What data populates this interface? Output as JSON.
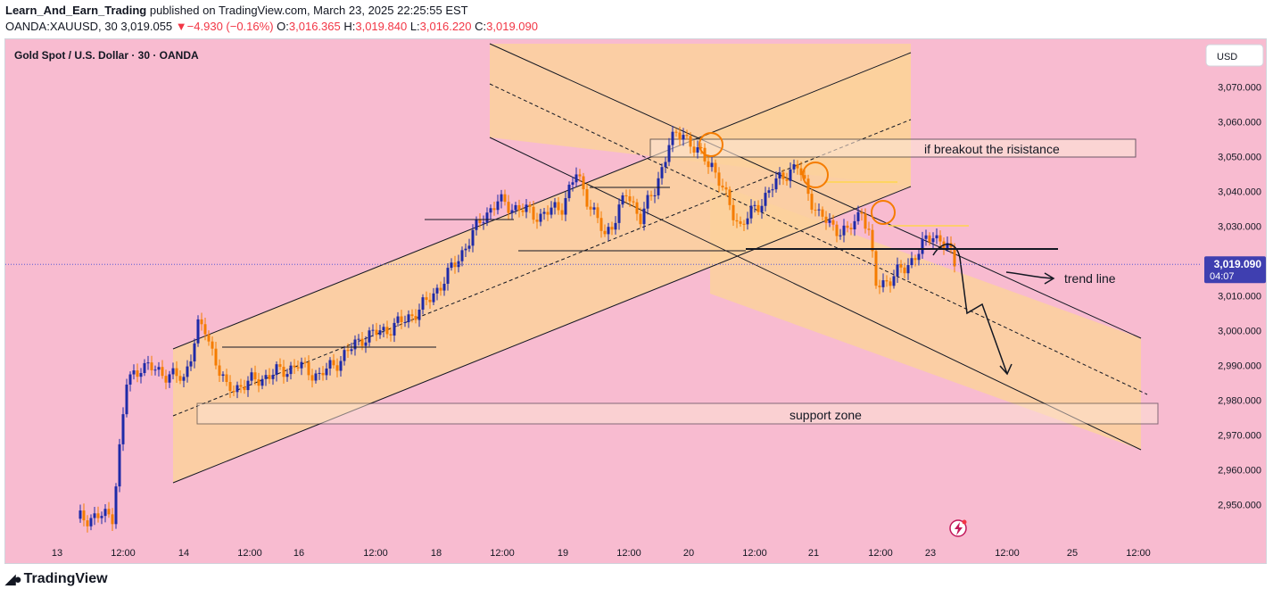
{
  "header": {
    "author": "Learn_And_Earn_Trading",
    "published_text": "published on TradingView.com, March 23, 2025 22:25:55 EST",
    "symbol": "OANDA:XAUUSD, 30",
    "last": "3,019.055",
    "change": "−4.930 (−0.16%)",
    "o_label": "O:",
    "o": "3,016.365",
    "h_label": "H:",
    "h": "3,019.840",
    "l_label": "L:",
    "l": "3,016.220",
    "c_label": "C:",
    "c": "3,019.090"
  },
  "footer": {
    "brand": "TradingView"
  },
  "colors": {
    "background": "#f8bbd0",
    "channel_fill": "#fcd19c",
    "bull": "#1e2aa8",
    "bear": "#f57c00",
    "price_label": "#3f3fb0"
  },
  "chart_data": {
    "type": "candlestick",
    "title": "Gold Spot / U.S. Dollar · 30 · OANDA",
    "currency": "USD",
    "ylim": [
      2943,
      3083
    ],
    "y_ticks": [
      "3,070.000",
      "3,060.000",
      "3,050.000",
      "3,040.000",
      "3,030.000",
      "3,020.000",
      "3,010.000",
      "3,000.000",
      "2,990.000",
      "2,980.000",
      "2,970.000",
      "2,960.000",
      "2,950.000"
    ],
    "y_tick_values": [
      3070,
      3060,
      3050,
      3040,
      3030,
      3020,
      3010,
      3000,
      2990,
      2980,
      2970,
      2960,
      2950
    ],
    "x_ticks": [
      "13",
      "12:00",
      "14",
      "12:00",
      "16",
      "12:00",
      "18",
      "12:00",
      "19",
      "12:00",
      "20",
      "12:00",
      "21",
      "12:00",
      "23",
      "12:00",
      "25",
      "12:00"
    ],
    "last_price": "3,019.090",
    "countdown": "04:07",
    "annotations": {
      "resistance": "if breakout the risistance",
      "trend": "trend line",
      "support": "support zone"
    },
    "price_anchors": [
      [
        0,
        2946
      ],
      [
        10,
        2947
      ],
      [
        14,
        2985
      ],
      [
        18,
        2990
      ],
      [
        24,
        2988
      ],
      [
        30,
        2986
      ],
      [
        34,
        3001
      ],
      [
        36,
        3000
      ],
      [
        42,
        2983
      ],
      [
        48,
        2985
      ],
      [
        56,
        2988
      ],
      [
        62,
        2990
      ],
      [
        68,
        2987
      ],
      [
        74,
        2992
      ],
      [
        80,
        2998
      ],
      [
        86,
        3000
      ],
      [
        92,
        3003
      ],
      [
        98,
        3008
      ],
      [
        104,
        3016
      ],
      [
        110,
        3026
      ],
      [
        114,
        3033
      ],
      [
        118,
        3037
      ],
      [
        124,
        3035
      ],
      [
        130,
        3033
      ],
      [
        136,
        3036
      ],
      [
        140,
        3045
      ],
      [
        144,
        3036
      ],
      [
        148,
        3027
      ],
      [
        154,
        3039
      ],
      [
        158,
        3033
      ],
      [
        162,
        3040
      ],
      [
        166,
        3054
      ],
      [
        170,
        3057
      ],
      [
        174,
        3051
      ],
      [
        178,
        3048
      ],
      [
        182,
        3038
      ],
      [
        186,
        3030
      ],
      [
        190,
        3035
      ],
      [
        194,
        3040
      ],
      [
        198,
        3045
      ],
      [
        202,
        3047
      ],
      [
        204,
        3042
      ],
      [
        208,
        3033
      ],
      [
        212,
        3030
      ],
      [
        216,
        3028
      ],
      [
        220,
        3035
      ],
      [
        222,
        3028
      ],
      [
        224,
        3013
      ],
      [
        228,
        3015
      ],
      [
        232,
        3018
      ],
      [
        236,
        3023
      ],
      [
        240,
        3028
      ],
      [
        244,
        3024
      ],
      [
        246,
        3019
      ]
    ]
  }
}
